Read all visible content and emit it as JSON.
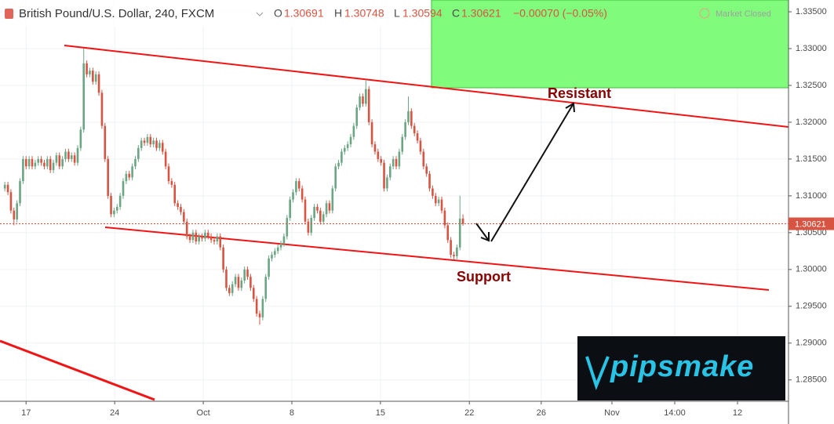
{
  "chart_data": {
    "type": "candlestick",
    "title": "British Pound/U.S. Dollar, 240, FXCM",
    "ohlc_labels": [
      "O",
      "H",
      "L",
      "C"
    ],
    "change": "−0.00070 (−0.05%)",
    "market_status": "Market Closed",
    "annotations": [
      "Resistant",
      "Support"
    ],
    "watermark": "pipsmake",
    "up_color": "#6ba583",
    "down_color": "#d75442",
    "grid": true,
    "xlim": [
      -1.6,
      258.3
    ],
    "xticks": [
      {
        "value": 7.0,
        "label": "17"
      },
      {
        "value": 36.2,
        "label": "24"
      },
      {
        "value": 65.4,
        "label": "Oct"
      },
      {
        "value": 94.6,
        "label": "8"
      },
      {
        "value": 123.8,
        "label": "15"
      },
      {
        "value": 153.1,
        "label": "22"
      },
      {
        "value": 176.8,
        "label": "26"
      },
      {
        "value": 200.1,
        "label": "Nov"
      },
      {
        "value": 220.8,
        "label": "14:00"
      },
      {
        "value": 241.5,
        "label": "12"
      }
    ],
    "ylim": [
      1.2821,
      1.3366
    ],
    "yticks": [
      {
        "value": 1.285,
        "label": "1.28500"
      },
      {
        "value": 1.29,
        "label": "1.29000"
      },
      {
        "value": 1.295,
        "label": "1.29500"
      },
      {
        "value": 1.3,
        "label": "1.30000"
      },
      {
        "value": 1.305,
        "label": "1.30500"
      },
      {
        "value": 1.31,
        "label": "1.31000"
      },
      {
        "value": 1.315,
        "label": "1.31500"
      },
      {
        "value": 1.32,
        "label": "1.32000"
      },
      {
        "value": 1.325,
        "label": "1.32500"
      },
      {
        "value": 1.33,
        "label": "1.33000"
      },
      {
        "value": 1.335,
        "label": "1.33500"
      }
    ],
    "candles": [
      [
        1.311,
        1.3119,
        1.3106,
        1.3115
      ],
      [
        1.3115,
        1.3119,
        1.3101,
        1.3105
      ],
      [
        1.3105,
        1.3109,
        1.3076,
        1.308
      ],
      [
        1.308,
        1.3084,
        1.306,
        1.3068
      ],
      [
        1.3068,
        1.3094,
        1.3064,
        1.309
      ],
      [
        1.309,
        1.3124,
        1.3086,
        1.312
      ],
      [
        1.312,
        1.3154,
        1.3116,
        1.315
      ],
      [
        1.315,
        1.3154,
        1.3136,
        1.314
      ],
      [
        1.314,
        1.3154,
        1.3136,
        1.315
      ],
      [
        1.315,
        1.3154,
        1.3136,
        1.314
      ],
      [
        1.314,
        1.3149,
        1.3136,
        1.3145
      ],
      [
        1.3145,
        1.3154,
        1.3141,
        1.315
      ],
      [
        1.315,
        1.3154,
        1.3141,
        1.3145
      ],
      [
        1.3145,
        1.3149,
        1.3136,
        1.314
      ],
      [
        1.314,
        1.3154,
        1.3136,
        1.315
      ],
      [
        1.315,
        1.3154,
        1.3131,
        1.3135
      ],
      [
        1.3135,
        1.3149,
        1.3131,
        1.3145
      ],
      [
        1.3145,
        1.3159,
        1.3141,
        1.3155
      ],
      [
        1.3155,
        1.3159,
        1.3136,
        1.314
      ],
      [
        1.314,
        1.3154,
        1.3136,
        1.315
      ],
      [
        1.315,
        1.3164,
        1.3146,
        1.316
      ],
      [
        1.316,
        1.3164,
        1.3146,
        1.315
      ],
      [
        1.315,
        1.3159,
        1.3146,
        1.3155
      ],
      [
        1.3155,
        1.3159,
        1.3141,
        1.3145
      ],
      [
        1.3145,
        1.3169,
        1.3141,
        1.3165
      ],
      [
        1.3165,
        1.3194,
        1.3161,
        1.319
      ],
      [
        1.319,
        1.33,
        1.3186,
        1.328
      ],
      [
        1.328,
        1.3284,
        1.3261,
        1.3265
      ],
      [
        1.3265,
        1.3274,
        1.3261,
        1.327
      ],
      [
        1.327,
        1.3274,
        1.3251,
        1.3255
      ],
      [
        1.3255,
        1.3269,
        1.3251,
        1.3265
      ],
      [
        1.3265,
        1.3269,
        1.3236,
        1.324
      ],
      [
        1.324,
        1.3244,
        1.3191,
        1.3195
      ],
      [
        1.3195,
        1.3199,
        1.3146,
        1.315
      ],
      [
        1.315,
        1.3154,
        1.3096,
        1.31
      ],
      [
        1.31,
        1.3104,
        1.3071,
        1.3075
      ],
      [
        1.3075,
        1.3084,
        1.3071,
        1.308
      ],
      [
        1.308,
        1.3089,
        1.3076,
        1.3085
      ],
      [
        1.3085,
        1.3104,
        1.3081,
        1.31
      ],
      [
        1.31,
        1.3124,
        1.3096,
        1.312
      ],
      [
        1.312,
        1.3134,
        1.3116,
        1.313
      ],
      [
        1.313,
        1.3134,
        1.3121,
        1.3125
      ],
      [
        1.3125,
        1.3144,
        1.3121,
        1.314
      ],
      [
        1.314,
        1.3154,
        1.3136,
        1.315
      ],
      [
        1.315,
        1.3169,
        1.3146,
        1.3165
      ],
      [
        1.3165,
        1.3179,
        1.3161,
        1.3175
      ],
      [
        1.3175,
        1.3179,
        1.3168,
        1.3172
      ],
      [
        1.3172,
        1.3184,
        1.3168,
        1.318
      ],
      [
        1.318,
        1.3184,
        1.3166,
        1.317
      ],
      [
        1.317,
        1.3179,
        1.3166,
        1.3175
      ],
      [
        1.3175,
        1.3179,
        1.3161,
        1.3165
      ],
      [
        1.3165,
        1.3176,
        1.3161,
        1.3172
      ],
      [
        1.3172,
        1.3176,
        1.3156,
        1.316
      ],
      [
        1.316,
        1.3164,
        1.3136,
        1.314
      ],
      [
        1.314,
        1.3144,
        1.3116,
        1.312
      ],
      [
        1.312,
        1.3124,
        1.3111,
        1.3115
      ],
      [
        1.3115,
        1.3119,
        1.3086,
        1.309
      ],
      [
        1.309,
        1.3094,
        1.3081,
        1.3085
      ],
      [
        1.3085,
        1.3089,
        1.3074,
        1.3078
      ],
      [
        1.3078,
        1.3082,
        1.3061,
        1.3065
      ],
      [
        1.3065,
        1.3069,
        1.3041,
        1.3045
      ],
      [
        1.3045,
        1.3049,
        1.3036,
        1.304
      ],
      [
        1.304,
        1.3054,
        1.3036,
        1.305
      ],
      [
        1.305,
        1.3054,
        1.3034,
        1.3038
      ],
      [
        1.3038,
        1.3049,
        1.3034,
        1.3045
      ],
      [
        1.3045,
        1.3049,
        1.3038,
        1.3042
      ],
      [
        1.3042,
        1.3054,
        1.3038,
        1.305
      ],
      [
        1.305,
        1.3054,
        1.3041,
        1.3045
      ],
      [
        1.3045,
        1.3049,
        1.3036,
        1.304
      ],
      [
        1.304,
        1.3044,
        1.3034,
        1.3038
      ],
      [
        1.3038,
        1.3049,
        1.3034,
        1.3045
      ],
      [
        1.3045,
        1.3049,
        1.3026,
        1.303
      ],
      [
        1.303,
        1.3034,
        1.2996,
        1.3
      ],
      [
        1.3,
        1.3004,
        1.2971,
        1.2975
      ],
      [
        1.2975,
        1.2979,
        1.2964,
        1.2968
      ],
      [
        1.2968,
        1.2984,
        1.2964,
        1.298
      ],
      [
        1.298,
        1.2994,
        1.2976,
        1.299
      ],
      [
        1.299,
        1.2994,
        1.2971,
        1.2975
      ],
      [
        1.2975,
        1.2989,
        1.2971,
        1.2985
      ],
      [
        1.2985,
        1.3004,
        1.2981,
        1.3
      ],
      [
        1.3,
        1.3004,
        1.2986,
        1.299
      ],
      [
        1.299,
        1.2994,
        1.2971,
        1.2975
      ],
      [
        1.2975,
        1.2979,
        1.2956,
        1.296
      ],
      [
        1.296,
        1.2964,
        1.2936,
        1.294
      ],
      [
        1.294,
        1.2944,
        1.2925,
        1.2935
      ],
      [
        1.2935,
        1.2964,
        1.2931,
        1.296
      ],
      [
        1.296,
        1.2994,
        1.2956,
        1.299
      ],
      [
        1.299,
        1.3019,
        1.2986,
        1.3015
      ],
      [
        1.3015,
        1.3024,
        1.3011,
        1.302
      ],
      [
        1.302,
        1.3029,
        1.3016,
        1.3025
      ],
      [
        1.3025,
        1.3034,
        1.3021,
        1.303
      ],
      [
        1.303,
        1.3039,
        1.3026,
        1.3035
      ],
      [
        1.3035,
        1.3049,
        1.3031,
        1.3045
      ],
      [
        1.3045,
        1.3074,
        1.3041,
        1.307
      ],
      [
        1.307,
        1.3099,
        1.3066,
        1.3095
      ],
      [
        1.3095,
        1.3109,
        1.3091,
        1.3105
      ],
      [
        1.3105,
        1.3124,
        1.3101,
        1.312
      ],
      [
        1.312,
        1.3124,
        1.3106,
        1.311
      ],
      [
        1.311,
        1.3114,
        1.3091,
        1.3095
      ],
      [
        1.3095,
        1.3099,
        1.3061,
        1.3065
      ],
      [
        1.3065,
        1.3069,
        1.3046,
        1.305
      ],
      [
        1.305,
        1.3074,
        1.3046,
        1.307
      ],
      [
        1.307,
        1.3089,
        1.3066,
        1.3085
      ],
      [
        1.3085,
        1.3089,
        1.3076,
        1.308
      ],
      [
        1.308,
        1.3084,
        1.3061,
        1.3065
      ],
      [
        1.3065,
        1.3079,
        1.3061,
        1.3075
      ],
      [
        1.3075,
        1.3094,
        1.3071,
        1.309
      ],
      [
        1.309,
        1.3094,
        1.3076,
        1.308
      ],
      [
        1.308,
        1.3114,
        1.3076,
        1.311
      ],
      [
        1.311,
        1.3144,
        1.3106,
        1.314
      ],
      [
        1.314,
        1.3149,
        1.3136,
        1.3145
      ],
      [
        1.3145,
        1.3164,
        1.3141,
        1.316
      ],
      [
        1.316,
        1.3169,
        1.3156,
        1.3165
      ],
      [
        1.3165,
        1.3174,
        1.3161,
        1.317
      ],
      [
        1.317,
        1.3184,
        1.3166,
        1.318
      ],
      [
        1.318,
        1.3199,
        1.3176,
        1.3195
      ],
      [
        1.3195,
        1.3224,
        1.3191,
        1.322
      ],
      [
        1.322,
        1.3239,
        1.3216,
        1.3235
      ],
      [
        1.3235,
        1.3239,
        1.3221,
        1.3225
      ],
      [
        1.3225,
        1.3258,
        1.3221,
        1.3245
      ],
      [
        1.3245,
        1.3249,
        1.3196,
        1.32
      ],
      [
        1.32,
        1.3204,
        1.3166,
        1.317
      ],
      [
        1.317,
        1.3174,
        1.3156,
        1.316
      ],
      [
        1.316,
        1.3164,
        1.3146,
        1.315
      ],
      [
        1.315,
        1.3154,
        1.3141,
        1.3145
      ],
      [
        1.3145,
        1.3149,
        1.3106,
        1.311
      ],
      [
        1.311,
        1.3129,
        1.3106,
        1.3125
      ],
      [
        1.3125,
        1.3144,
        1.3121,
        1.314
      ],
      [
        1.314,
        1.3154,
        1.3136,
        1.315
      ],
      [
        1.315,
        1.3154,
        1.3136,
        1.314
      ],
      [
        1.314,
        1.3164,
        1.3136,
        1.316
      ],
      [
        1.316,
        1.3184,
        1.3156,
        1.318
      ],
      [
        1.318,
        1.3204,
        1.3176,
        1.32
      ],
      [
        1.32,
        1.3235,
        1.3196,
        1.3215
      ],
      [
        1.3215,
        1.3219,
        1.3191,
        1.3195
      ],
      [
        1.3195,
        1.3199,
        1.3181,
        1.3185
      ],
      [
        1.3185,
        1.3189,
        1.3171,
        1.3175
      ],
      [
        1.3175,
        1.3179,
        1.3156,
        1.316
      ],
      [
        1.316,
        1.3164,
        1.3136,
        1.314
      ],
      [
        1.314,
        1.3144,
        1.3126,
        1.313
      ],
      [
        1.313,
        1.3134,
        1.3106,
        1.311
      ],
      [
        1.311,
        1.3114,
        1.3096,
        1.31
      ],
      [
        1.31,
        1.3104,
        1.3086,
        1.309
      ],
      [
        1.309,
        1.3099,
        1.3086,
        1.3095
      ],
      [
        1.3095,
        1.3099,
        1.3076,
        1.308
      ],
      [
        1.308,
        1.3084,
        1.3056,
        1.306
      ],
      [
        1.306,
        1.3064,
        1.3036,
        1.304
      ],
      [
        1.304,
        1.3044,
        1.3016,
        1.302
      ],
      [
        1.302,
        1.3024,
        1.3014,
        1.3018
      ],
      [
        1.3018,
        1.3034,
        1.3014,
        1.303
      ],
      [
        1.303,
        1.31,
        1.3026,
        1.3069
      ],
      [
        1.30691,
        1.30748,
        1.30594,
        1.30621
      ]
    ]
  }
}
